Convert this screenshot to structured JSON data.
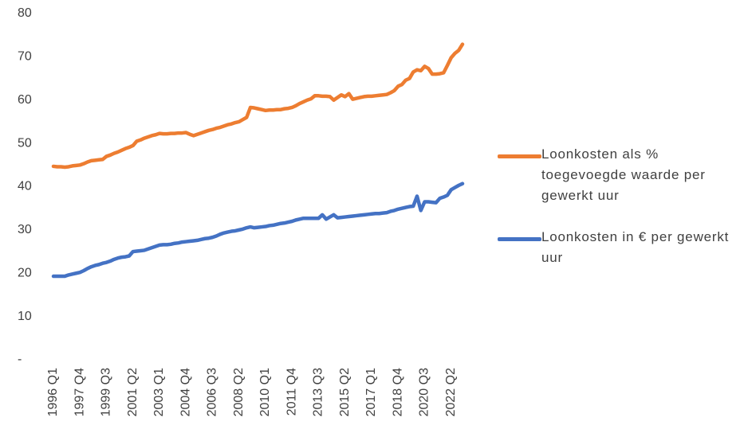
{
  "chart_data": {
    "type": "line",
    "categories": [
      "1996 Q1",
      null,
      null,
      null,
      null,
      null,
      null,
      "1997 Q4",
      null,
      null,
      null,
      null,
      null,
      null,
      "1999 Q3",
      null,
      null,
      null,
      null,
      null,
      null,
      "2001 Q2",
      null,
      null,
      null,
      null,
      null,
      null,
      "2003 Q1",
      null,
      null,
      null,
      null,
      null,
      null,
      "2004 Q4",
      null,
      null,
      null,
      null,
      null,
      null,
      "2006 Q3",
      null,
      null,
      null,
      null,
      null,
      null,
      "2008 Q2",
      null,
      null,
      null,
      null,
      null,
      null,
      "2010 Q1",
      null,
      null,
      null,
      null,
      null,
      null,
      "2011 Q4",
      null,
      null,
      null,
      null,
      null,
      null,
      "2013 Q3",
      null,
      null,
      null,
      null,
      null,
      null,
      "2015 Q2",
      null,
      null,
      null,
      null,
      null,
      null,
      "2017 Q1",
      null,
      null,
      null,
      null,
      null,
      null,
      "2018 Q4",
      null,
      null,
      null,
      null,
      null,
      null,
      "2020 Q3",
      null,
      null,
      null,
      null,
      null,
      null,
      "2022 Q2",
      null,
      null,
      null
    ],
    "series": [
      {
        "name": "Loonkosten als % toegevoegde waarde per gewerkt uur",
        "color": "#ED7D31",
        "values": [
          44.7,
          44.6,
          44.6,
          44.5,
          44.6,
          44.8,
          44.9,
          45.0,
          45.3,
          45.7,
          46.0,
          46.1,
          46.2,
          46.3,
          47.0,
          47.3,
          47.7,
          48.0,
          48.4,
          48.8,
          49.1,
          49.5,
          50.5,
          50.8,
          51.2,
          51.5,
          51.8,
          52.0,
          52.3,
          52.2,
          52.2,
          52.3,
          52.3,
          52.4,
          52.4,
          52.5,
          52.1,
          51.8,
          52.1,
          52.4,
          52.7,
          53.0,
          53.2,
          53.5,
          53.7,
          54.0,
          54.3,
          54.5,
          54.8,
          55.0,
          55.5,
          56.0,
          58.3,
          58.2,
          58.0,
          57.8,
          57.6,
          57.7,
          57.7,
          57.8,
          57.8,
          58.0,
          58.1,
          58.3,
          58.7,
          59.2,
          59.6,
          60.0,
          60.3,
          61.0,
          61.0,
          60.9,
          60.9,
          60.8,
          60.0,
          60.6,
          61.2,
          60.8,
          61.5,
          60.2,
          60.4,
          60.6,
          60.8,
          60.9,
          60.9,
          61.0,
          61.1,
          61.2,
          61.3,
          61.7,
          62.2,
          63.2,
          63.6,
          64.6,
          65.0,
          66.5,
          67.0,
          66.8,
          67.8,
          67.3,
          66.0,
          66.0,
          66.1,
          66.3,
          68.0,
          69.8,
          70.8,
          71.5,
          72.9
        ]
      },
      {
        "name": "Loonkosten in € per gewerkt uur",
        "color": "#4472C4",
        "values": [
          19.3,
          19.3,
          19.3,
          19.3,
          19.6,
          19.8,
          20.0,
          20.2,
          20.6,
          21.1,
          21.5,
          21.8,
          22.0,
          22.3,
          22.5,
          22.8,
          23.2,
          23.5,
          23.7,
          23.8,
          24.0,
          25.0,
          25.1,
          25.2,
          25.3,
          25.6,
          25.9,
          26.2,
          26.5,
          26.6,
          26.6,
          26.7,
          26.9,
          27.0,
          27.2,
          27.3,
          27.4,
          27.5,
          27.6,
          27.8,
          28.0,
          28.1,
          28.3,
          28.6,
          29.0,
          29.3,
          29.5,
          29.7,
          29.8,
          30.0,
          30.2,
          30.5,
          30.7,
          30.5,
          30.6,
          30.7,
          30.8,
          31.0,
          31.1,
          31.3,
          31.5,
          31.6,
          31.8,
          32.0,
          32.3,
          32.5,
          32.7,
          32.7,
          32.7,
          32.7,
          32.7,
          33.5,
          32.5,
          33.0,
          33.5,
          32.8,
          32.9,
          33.0,
          33.1,
          33.2,
          33.3,
          33.4,
          33.5,
          33.6,
          33.7,
          33.8,
          33.8,
          33.9,
          34.0,
          34.3,
          34.5,
          34.8,
          35.0,
          35.2,
          35.4,
          35.5,
          37.8,
          34.5,
          36.5,
          36.5,
          36.4,
          36.3,
          37.3,
          37.6,
          38.0,
          39.3,
          39.8,
          40.3,
          40.7
        ]
      }
    ],
    "ylim": [
      0,
      80
    ],
    "yticks": [
      {
        "value": 0,
        "label": "-"
      },
      10,
      20,
      30,
      40,
      50,
      60,
      70,
      80
    ],
    "grid": false,
    "legend": "right"
  }
}
